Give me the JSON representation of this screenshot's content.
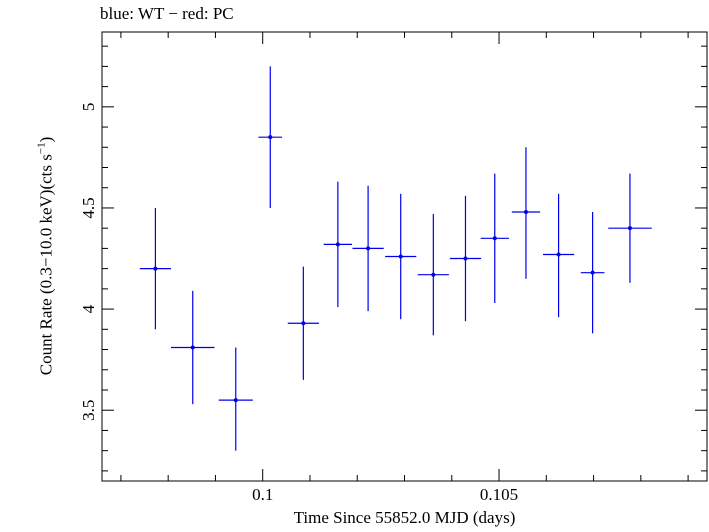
{
  "chart_data": {
    "type": "scatter",
    "title": "blue: WT − red: PC",
    "xlabel": "Time Since 55852.0 MJD (days)",
    "ylabel": "Count Rate (0.3−10.0 keV)(cts s",
    "ylabel_exp": "−1",
    "ylabel_close": ")",
    "xlim": [
      0.0966,
      0.1094
    ],
    "ylim": [
      3.15,
      5.37
    ],
    "x_ticks": [
      0.1,
      0.105
    ],
    "x_tick_labels": [
      "0.1",
      "0.105"
    ],
    "y_ticks": [
      3.5,
      4,
      4.5,
      5
    ],
    "y_tick_labels": [
      "3.5",
      "4",
      "4.5",
      "5"
    ],
    "grid": false,
    "series": [
      {
        "color": "#0000ee",
        "points": [
          {
            "x": 0.09773,
            "y": 4.2,
            "xerr": 0.00033,
            "yerr_low": 0.3,
            "yerr_high": 0.3
          },
          {
            "x": 0.09852,
            "y": 3.81,
            "xerr": 0.00046,
            "yerr_low": 0.28,
            "yerr_high": 0.28
          },
          {
            "x": 0.09943,
            "y": 3.55,
            "xerr": 0.00036,
            "yerr_low": 0.25,
            "yerr_high": 0.26
          },
          {
            "x": 0.10016,
            "y": 4.85,
            "xerr": 0.00025,
            "yerr_low": 0.35,
            "yerr_high": 0.35
          },
          {
            "x": 0.10086,
            "y": 3.93,
            "xerr": 0.00033,
            "yerr_low": 0.28,
            "yerr_high": 0.28
          },
          {
            "x": 0.10159,
            "y": 4.32,
            "xerr": 0.0003,
            "yerr_low": 0.31,
            "yerr_high": 0.31
          },
          {
            "x": 0.10223,
            "y": 4.3,
            "xerr": 0.00033,
            "yerr_low": 0.31,
            "yerr_high": 0.31
          },
          {
            "x": 0.10292,
            "y": 4.26,
            "xerr": 0.00033,
            "yerr_low": 0.31,
            "yerr_high": 0.31
          },
          {
            "x": 0.10361,
            "y": 4.17,
            "xerr": 0.00033,
            "yerr_low": 0.3,
            "yerr_high": 0.3
          },
          {
            "x": 0.10429,
            "y": 4.25,
            "xerr": 0.00033,
            "yerr_low": 0.31,
            "yerr_high": 0.31
          },
          {
            "x": 0.10491,
            "y": 4.35,
            "xerr": 0.0003,
            "yerr_low": 0.32,
            "yerr_high": 0.32
          },
          {
            "x": 0.10557,
            "y": 4.48,
            "xerr": 0.0003,
            "yerr_low": 0.33,
            "yerr_high": 0.32
          },
          {
            "x": 0.10626,
            "y": 4.27,
            "xerr": 0.00033,
            "yerr_low": 0.31,
            "yerr_high": 0.3
          },
          {
            "x": 0.10698,
            "y": 4.18,
            "xerr": 0.00025,
            "yerr_low": 0.3,
            "yerr_high": 0.3
          },
          {
            "x": 0.10777,
            "y": 4.4,
            "xerr": 0.00046,
            "yerr_low": 0.27,
            "yerr_high": 0.27
          }
        ]
      }
    ]
  }
}
